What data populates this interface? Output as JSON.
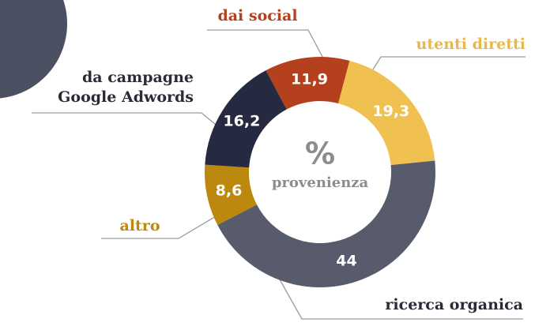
{
  "chart_data": {
    "type": "pie",
    "categories": [
      "dai social",
      "utenti diretti",
      "ricerca organica",
      "altro",
      "da campagne\nGoogle Adwords"
    ],
    "values": [
      11.9,
      19.3,
      44,
      8.6,
      16.2
    ],
    "value_labels": [
      "11,9",
      "19,3",
      "44",
      "8,6",
      "16,2"
    ],
    "colors": [
      "#b5401e",
      "#f0c150",
      "#575b6b",
      "#bc880e",
      "#252a40"
    ],
    "center_text": [
      "%",
      "provenienza"
    ]
  }
}
